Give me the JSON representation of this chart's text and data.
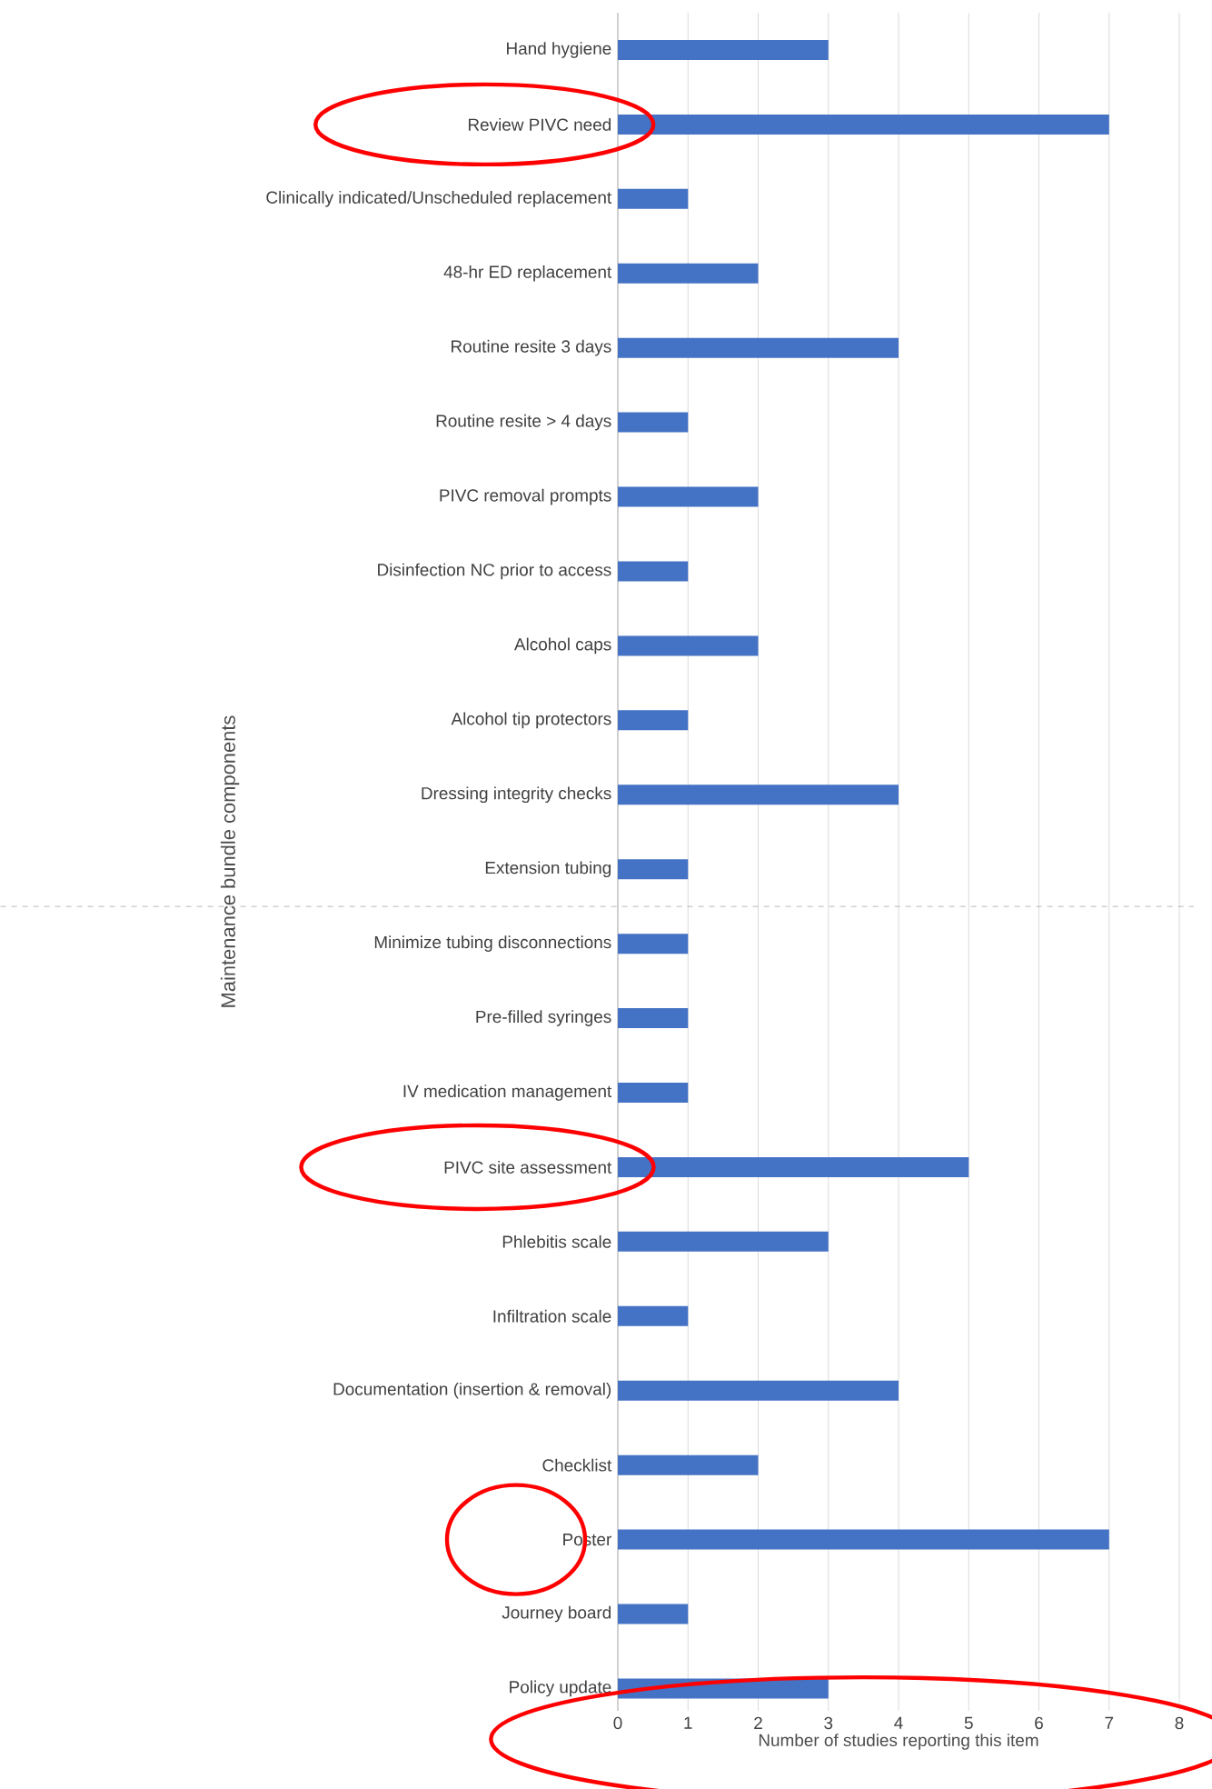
{
  "chart_data": {
    "type": "bar",
    "orientation": "horizontal",
    "categories": [
      "Hand hygiene",
      "Review PIVC need",
      "Clinically indicated/Unscheduled replacement",
      "48-hr ED replacement",
      "Routine resite 3 days",
      "Routine resite > 4 days",
      "PIVC removal prompts",
      "Disinfection NC prior to access",
      "Alcohol caps",
      "Alcohol tip protectors",
      "Dressing integrity checks",
      "Extension tubing",
      "Minimize tubing disconnections",
      "Pre-filled syringes",
      "IV medication management",
      "PIVC site assessment",
      "Phlebitis scale",
      "Infiltration scale",
      "Documentation (insertion & removal)",
      "Checklist",
      "Poster",
      "Journey board",
      "Policy update"
    ],
    "values": [
      3,
      7,
      1,
      2,
      4,
      1,
      2,
      1,
      2,
      1,
      4,
      1,
      1,
      1,
      1,
      5,
      3,
      1,
      4,
      2,
      7,
      1,
      3
    ],
    "color": "#4472c4",
    "xlabel": "Number of studies reporting this item",
    "ylabel": "Maintenance bundle components",
    "xlim": [
      0,
      8
    ],
    "xticks": [
      0,
      1,
      2,
      3,
      4,
      5,
      6,
      7,
      8
    ],
    "grid": "x"
  }
}
